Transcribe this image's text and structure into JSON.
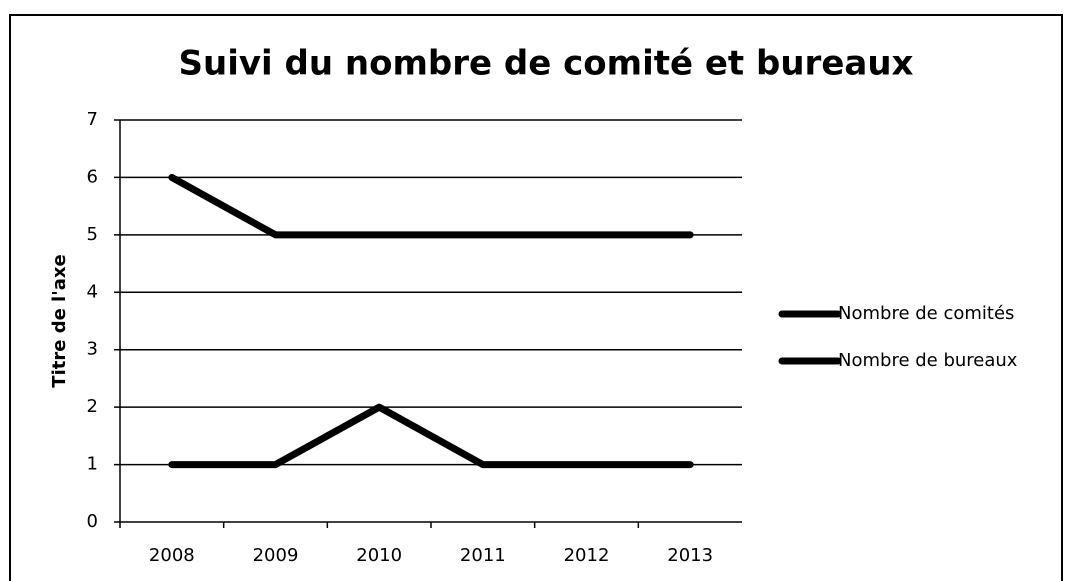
{
  "chart_data": {
    "type": "line",
    "title": "Suivi du nombre de comité et bureaux",
    "y_label": "Titre de l'axe",
    "categories": [
      "2008",
      "2009",
      "2010",
      "2011",
      "2012",
      "2013"
    ],
    "series": [
      {
        "name": "Nombre de comités",
        "color": "#000000",
        "values": [
          6,
          5,
          5,
          5,
          5,
          5
        ]
      },
      {
        "name": "Nombre de bureaux",
        "color": "#000000",
        "values": [
          1,
          1,
          2,
          1,
          1,
          1
        ]
      }
    ],
    "ylim": [
      0,
      7
    ],
    "yticks": [
      0,
      1,
      2,
      3,
      4,
      5,
      6,
      7
    ],
    "grid": true,
    "legend": "right"
  }
}
